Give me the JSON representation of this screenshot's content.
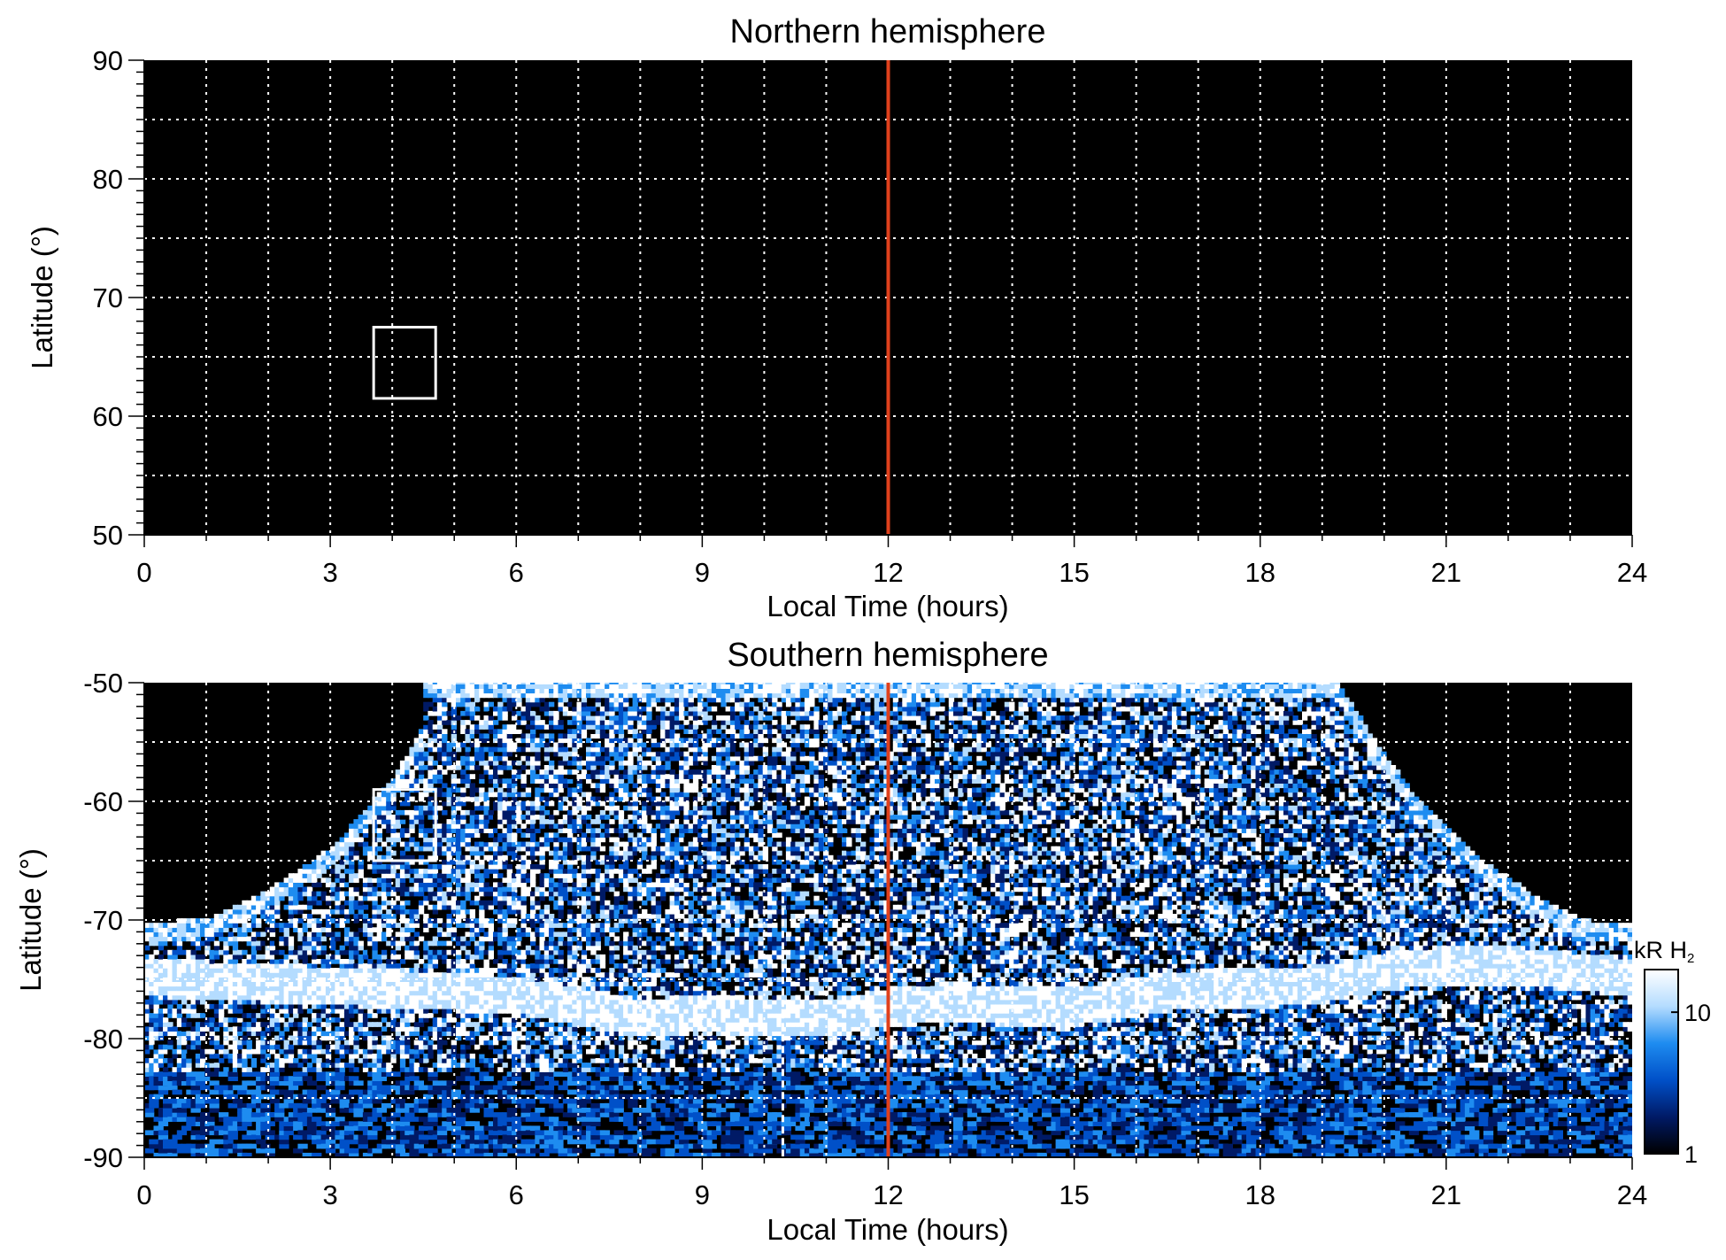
{
  "chart_data": [
    {
      "type": "heatmap",
      "title": "Northern hemisphere",
      "xlabel": "Local Time (hours)",
      "ylabel": "Latitude (°)",
      "xlim": [
        0,
        24
      ],
      "ylim": [
        50,
        90
      ],
      "xticks": [
        0,
        3,
        6,
        9,
        12,
        15,
        18,
        21,
        24
      ],
      "yticks": [
        50,
        60,
        70,
        80,
        90
      ],
      "grid": true,
      "background": "#000000",
      "emission": "none",
      "noon_line": {
        "local_time": 12,
        "color": "#e0401c"
      },
      "box": {
        "lt": [
          3.7,
          4.7
        ],
        "lat": [
          61.5,
          67.5
        ],
        "color": "#ffffff"
      }
    },
    {
      "type": "heatmap",
      "title": "Southern hemisphere",
      "xlabel": "Local Time (hours)",
      "ylabel": "Latitude (°)",
      "xlim": [
        0,
        24
      ],
      "ylim": [
        -90,
        -50
      ],
      "xticks": [
        0,
        3,
        6,
        9,
        12,
        15,
        18,
        21,
        24
      ],
      "yticks": [
        -90,
        -80,
        -70,
        -60,
        -50
      ],
      "grid": true,
      "background": "#000000",
      "coverage_edge": [
        {
          "lt": 0,
          "lat": -70.5
        },
        {
          "lt": 1.0,
          "lat": -70.0
        },
        {
          "lt": 2.0,
          "lat": -67.5
        },
        {
          "lt": 3.0,
          "lat": -64.0
        },
        {
          "lt": 4.0,
          "lat": -58.0
        },
        {
          "lt": 4.5,
          "lat": -53.5
        },
        {
          "lt": 4.4,
          "lat": -50.0
        },
        {
          "lt": 19.2,
          "lat": -50.0
        },
        {
          "lt": 19.8,
          "lat": -55.0
        },
        {
          "lt": 20.5,
          "lat": -60.0
        },
        {
          "lt": 21.5,
          "lat": -65.0
        },
        {
          "lt": 22.5,
          "lat": -68.5
        },
        {
          "lt": 23.2,
          "lat": -70.2
        },
        {
          "lt": 24,
          "lat": -70.5
        }
      ],
      "auroral_oval": [
        {
          "lt": 0,
          "lat": -75.0
        },
        {
          "lt": 2,
          "lat": -75.5
        },
        {
          "lt": 4,
          "lat": -76.0
        },
        {
          "lt": 6,
          "lat": -76.5
        },
        {
          "lt": 7,
          "lat": -77.5
        },
        {
          "lt": 8,
          "lat": -78.5
        },
        {
          "lt": 9,
          "lat": -78.0
        },
        {
          "lt": 10,
          "lat": -78.5
        },
        {
          "lt": 11,
          "lat": -78.5
        },
        {
          "lt": 12,
          "lat": -77.5
        },
        {
          "lt": 13,
          "lat": -77.0
        },
        {
          "lt": 14,
          "lat": -77.5
        },
        {
          "lt": 15,
          "lat": -77.5
        },
        {
          "lt": 16,
          "lat": -76.5
        },
        {
          "lt": 17,
          "lat": -76.0
        },
        {
          "lt": 18,
          "lat": -76.0
        },
        {
          "lt": 19,
          "lat": -75.5
        },
        {
          "lt": 20,
          "lat": -74.5
        },
        {
          "lt": 21,
          "lat": -74.0
        },
        {
          "lt": 22,
          "lat": -74.0
        },
        {
          "lt": 23,
          "lat": -74.5
        },
        {
          "lt": 24,
          "lat": -75.0
        }
      ],
      "gap_line_local_time": 10.3,
      "noon_line": {
        "local_time": 12,
        "color": "#e0401c"
      },
      "box": {
        "lt": [
          3.7,
          4.7
        ],
        "lat": [
          -65.0,
          -59.0
        ],
        "color": "#ffffff"
      },
      "colorbar": {
        "label_main": "kR H",
        "label_sub": "2",
        "scale": "log",
        "range": [
          1,
          20
        ],
        "ticks": [
          1,
          10
        ],
        "tick_labels": [
          "1",
          "10"
        ],
        "colors": [
          "#000000",
          "#001a66",
          "#0050c8",
          "#1e8cf0",
          "#b4dcff",
          "#ffffff"
        ]
      }
    }
  ]
}
